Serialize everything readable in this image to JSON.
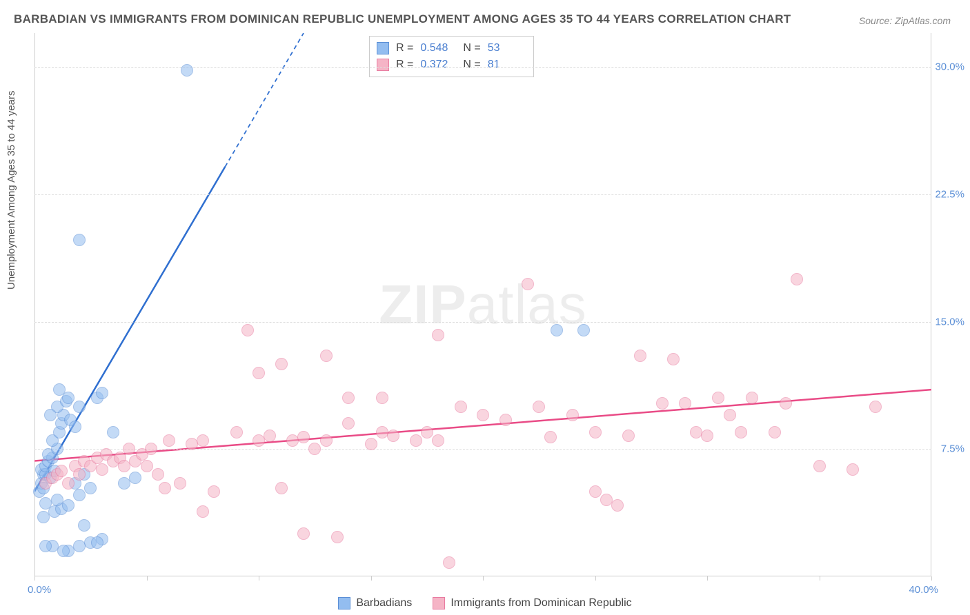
{
  "title": "BARBADIAN VS IMMIGRANTS FROM DOMINICAN REPUBLIC UNEMPLOYMENT AMONG AGES 35 TO 44 YEARS CORRELATION CHART",
  "source": "Source: ZipAtlas.com",
  "ylabel": "Unemployment Among Ages 35 to 44 years",
  "watermark_a": "ZIP",
  "watermark_b": "atlas",
  "chart": {
    "type": "scatter",
    "xlim": [
      0,
      40
    ],
    "ylim": [
      0,
      32
    ],
    "xtick_positions": [
      0,
      5,
      10,
      15,
      20,
      25,
      30,
      35,
      40
    ],
    "xtick_left": "0.0%",
    "xtick_right": "40.0%",
    "yticks": [
      {
        "pos": 7.5,
        "label": "7.5%"
      },
      {
        "pos": 15.0,
        "label": "15.0%"
      },
      {
        "pos": 22.5,
        "label": "22.5%"
      },
      {
        "pos": 30.0,
        "label": "30.0%"
      }
    ],
    "grid_color": "#dddddd",
    "axis_color": "#cccccc",
    "background_color": "#ffffff",
    "point_radius": 9,
    "point_opacity": 0.55,
    "series": [
      {
        "name": "Barbadians",
        "color_fill": "#93bdf0",
        "color_stroke": "#5b8fd6",
        "R": "0.548",
        "N": "53",
        "trend": {
          "x1": 0,
          "y1": 5.0,
          "x2": 12.0,
          "y2": 32.0,
          "solid_until_x": 8.5,
          "color": "#2f6fd0",
          "width": 2.5
        },
        "points": [
          [
            0.2,
            5.0
          ],
          [
            0.3,
            5.5
          ],
          [
            0.4,
            6.0
          ],
          [
            0.3,
            6.3
          ],
          [
            0.5,
            6.0
          ],
          [
            0.5,
            6.5
          ],
          [
            0.4,
            5.2
          ],
          [
            0.6,
            6.8
          ],
          [
            0.7,
            5.8
          ],
          [
            0.8,
            7.0
          ],
          [
            0.6,
            7.2
          ],
          [
            0.9,
            6.2
          ],
          [
            1.0,
            7.5
          ],
          [
            0.8,
            8.0
          ],
          [
            1.1,
            8.5
          ],
          [
            0.5,
            4.3
          ],
          [
            1.2,
            9.0
          ],
          [
            1.3,
            9.5
          ],
          [
            1.0,
            10.0
          ],
          [
            1.4,
            10.3
          ],
          [
            1.5,
            10.5
          ],
          [
            0.7,
            9.5
          ],
          [
            1.1,
            11.0
          ],
          [
            1.6,
            9.2
          ],
          [
            1.8,
            8.8
          ],
          [
            2.0,
            10.0
          ],
          [
            0.4,
            3.5
          ],
          [
            0.9,
            3.8
          ],
          [
            1.2,
            4.0
          ],
          [
            1.0,
            4.5
          ],
          [
            1.5,
            4.2
          ],
          [
            2.0,
            4.8
          ],
          [
            2.5,
            5.2
          ],
          [
            1.8,
            5.5
          ],
          [
            2.2,
            6.0
          ],
          [
            2.8,
            10.5
          ],
          [
            3.0,
            10.8
          ],
          [
            3.5,
            8.5
          ],
          [
            4.0,
            5.5
          ],
          [
            4.5,
            5.8
          ],
          [
            2.5,
            2.0
          ],
          [
            3.0,
            2.2
          ],
          [
            2.8,
            2.0
          ],
          [
            1.5,
            1.5
          ],
          [
            0.8,
            1.8
          ],
          [
            1.3,
            1.5
          ],
          [
            0.5,
            1.8
          ],
          [
            2.0,
            1.8
          ],
          [
            2.2,
            3.0
          ],
          [
            2.0,
            19.8
          ],
          [
            6.8,
            29.8
          ],
          [
            23.3,
            14.5
          ],
          [
            24.5,
            14.5
          ]
        ]
      },
      {
        "name": "Immigrants from Dominican Republic",
        "color_fill": "#f5b4c6",
        "color_stroke": "#e87ba0",
        "R": "0.372",
        "N": "81",
        "trend": {
          "x1": 0,
          "y1": 6.8,
          "x2": 40.0,
          "y2": 11.0,
          "solid_until_x": 40.0,
          "color": "#e94b86",
          "width": 2.5
        },
        "points": [
          [
            0.5,
            5.5
          ],
          [
            0.8,
            5.8
          ],
          [
            1.0,
            6.0
          ],
          [
            1.2,
            6.2
          ],
          [
            1.5,
            5.5
          ],
          [
            1.8,
            6.5
          ],
          [
            2.0,
            6.0
          ],
          [
            2.2,
            6.8
          ],
          [
            2.5,
            6.5
          ],
          [
            2.8,
            7.0
          ],
          [
            3.0,
            6.3
          ],
          [
            3.2,
            7.2
          ],
          [
            3.5,
            6.8
          ],
          [
            3.8,
            7.0
          ],
          [
            4.0,
            6.5
          ],
          [
            4.2,
            7.5
          ],
          [
            4.5,
            6.8
          ],
          [
            4.8,
            7.2
          ],
          [
            5.0,
            6.5
          ],
          [
            5.2,
            7.5
          ],
          [
            5.5,
            6.0
          ],
          [
            5.8,
            5.2
          ],
          [
            6.0,
            8.0
          ],
          [
            6.5,
            5.5
          ],
          [
            7.0,
            7.8
          ],
          [
            7.5,
            8.0
          ],
          [
            7.5,
            3.8
          ],
          [
            8.0,
            5.0
          ],
          [
            9.0,
            8.5
          ],
          [
            9.5,
            14.5
          ],
          [
            10.0,
            8.0
          ],
          [
            10.0,
            12.0
          ],
          [
            10.5,
            8.3
          ],
          [
            11.0,
            5.2
          ],
          [
            11.5,
            8.0
          ],
          [
            11.0,
            12.5
          ],
          [
            12.0,
            8.2
          ],
          [
            12.0,
            2.5
          ],
          [
            12.5,
            7.5
          ],
          [
            13.0,
            13.0
          ],
          [
            13.0,
            8.0
          ],
          [
            13.5,
            2.3
          ],
          [
            14.0,
            9.0
          ],
          [
            14.0,
            10.5
          ],
          [
            15.0,
            7.8
          ],
          [
            15.5,
            8.5
          ],
          [
            15.5,
            10.5
          ],
          [
            16.0,
            8.3
          ],
          [
            17.0,
            8.0
          ],
          [
            17.5,
            8.5
          ],
          [
            18.0,
            14.2
          ],
          [
            18.0,
            8.0
          ],
          [
            18.5,
            0.8
          ],
          [
            19.0,
            10.0
          ],
          [
            20.0,
            9.5
          ],
          [
            21.0,
            9.2
          ],
          [
            22.0,
            17.2
          ],
          [
            22.5,
            10.0
          ],
          [
            23.0,
            8.2
          ],
          [
            24.0,
            9.5
          ],
          [
            25.0,
            8.5
          ],
          [
            25.0,
            5.0
          ],
          [
            25.5,
            4.5
          ],
          [
            26.0,
            4.2
          ],
          [
            26.5,
            8.3
          ],
          [
            27.0,
            13.0
          ],
          [
            28.0,
            10.2
          ],
          [
            28.5,
            12.8
          ],
          [
            29.0,
            10.2
          ],
          [
            29.5,
            8.5
          ],
          [
            30.0,
            8.3
          ],
          [
            30.5,
            10.5
          ],
          [
            31.0,
            9.5
          ],
          [
            31.5,
            8.5
          ],
          [
            32.0,
            10.5
          ],
          [
            33.0,
            8.5
          ],
          [
            33.5,
            10.2
          ],
          [
            34.0,
            17.5
          ],
          [
            35.0,
            6.5
          ],
          [
            36.5,
            6.3
          ],
          [
            37.5,
            10.0
          ]
        ]
      }
    ]
  },
  "legend": {
    "series1_label": "Barbadians",
    "series2_label": "Immigrants from Dominican Republic"
  }
}
